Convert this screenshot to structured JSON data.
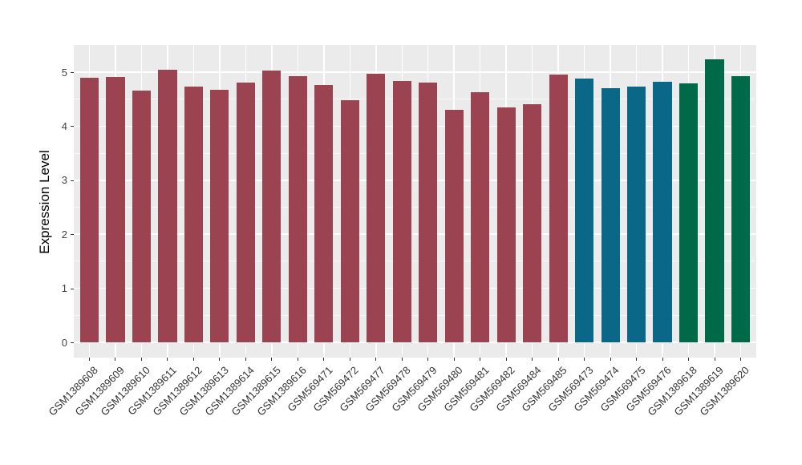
{
  "chart_data": {
    "type": "bar",
    "title": "",
    "xlabel": "",
    "ylabel": "Expression Level",
    "ylim": [
      0,
      5.5
    ],
    "yticks": [
      0,
      1,
      2,
      3,
      4,
      5
    ],
    "grid": "major-and-minor-white-on-gray",
    "legend": "none",
    "panel_bg": "#EBEBEB",
    "grid_color": "#FFFFFF",
    "axis_text_color": "#404040",
    "tick_color": "#333333",
    "group_colors": {
      "group1": "#9C4352",
      "group2": "#0A6787",
      "group3": "#006947"
    },
    "categories": [
      "GSM1389608",
      "GSM1389609",
      "GSM1389610",
      "GSM1389611",
      "GSM1389612",
      "GSM1389613",
      "GSM1389614",
      "GSM1389615",
      "GSM1389616",
      "GSM569471",
      "GSM569472",
      "GSM569477",
      "GSM569478",
      "GSM569479",
      "GSM569480",
      "GSM569481",
      "GSM569482",
      "GSM569484",
      "GSM569485",
      "GSM569473",
      "GSM569474",
      "GSM569475",
      "GSM569476",
      "GSM1389618",
      "GSM1389619",
      "GSM1389620"
    ],
    "values": [
      4.89,
      4.91,
      4.66,
      5.04,
      4.74,
      4.67,
      4.8,
      5.03,
      4.92,
      4.76,
      4.48,
      4.97,
      4.84,
      4.8,
      4.31,
      4.63,
      4.34,
      4.41,
      4.95,
      4.88,
      4.7,
      4.74,
      4.82,
      4.79,
      5.24,
      4.93
    ],
    "groups": [
      "group1",
      "group1",
      "group1",
      "group1",
      "group1",
      "group1",
      "group1",
      "group1",
      "group1",
      "group1",
      "group1",
      "group1",
      "group1",
      "group1",
      "group1",
      "group1",
      "group1",
      "group1",
      "group1",
      "group2",
      "group2",
      "group2",
      "group2",
      "group3",
      "group3",
      "group3"
    ]
  }
}
